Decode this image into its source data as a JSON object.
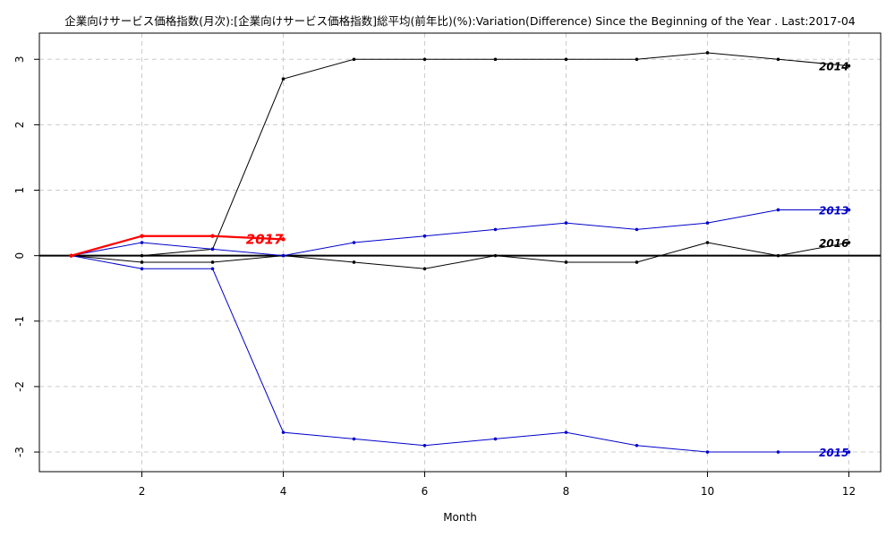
{
  "chart_data": {
    "type": "line",
    "title": "企業向けサービス価格指数(月次):[企業向けサービス価格指数]総平均(前年比)(%):Variation(Difference) Since the Beginning of the Year . Last:2017-04",
    "xlabel": "Month",
    "ylabel": "",
    "xlim": [
      0.55,
      12.45
    ],
    "ylim": [
      -3.3,
      3.4
    ],
    "x_ticks": [
      2,
      4,
      6,
      8,
      10,
      12
    ],
    "y_ticks": [
      -3,
      -2,
      -1,
      0,
      1,
      2,
      3
    ],
    "grid": true,
    "zero_line": true,
    "series": [
      {
        "name": "2014",
        "color": "#000000",
        "label_color": "#000000",
        "x": [
          1,
          2,
          3,
          4,
          5,
          6,
          7,
          8,
          9,
          10,
          11,
          12
        ],
        "values": [
          0,
          0,
          0.1,
          2.7,
          3.0,
          3.0,
          3.0,
          3.0,
          3.0,
          3.1,
          3.0,
          2.9
        ]
      },
      {
        "name": "2016",
        "color": "#000000",
        "label_color": "#000000",
        "x": [
          1,
          2,
          3,
          4,
          5,
          6,
          7,
          8,
          9,
          10,
          11,
          12
        ],
        "values": [
          0,
          -0.1,
          -0.1,
          0,
          -0.1,
          -0.2,
          0,
          -0.1,
          -0.1,
          0.2,
          0,
          0.2
        ]
      },
      {
        "name": "2013",
        "color": "#0000cc",
        "label_color": "#0000cc",
        "x": [
          1,
          2,
          3,
          4,
          5,
          6,
          7,
          8,
          9,
          10,
          11,
          12
        ],
        "values": [
          0,
          0.2,
          0.1,
          0,
          0.2,
          0.3,
          0.4,
          0.5,
          0.4,
          0.5,
          0.7,
          0.7
        ]
      },
      {
        "name": "2015",
        "color": "#0000cc",
        "label_color": "#0000cc",
        "x": [
          1,
          2,
          3,
          4,
          5,
          6,
          7,
          8,
          9,
          10,
          11,
          12
        ],
        "values": [
          0,
          -0.2,
          -0.2,
          -2.7,
          -2.8,
          -2.9,
          -2.8,
          -2.7,
          -2.9,
          -3.0,
          -3.0,
          -3.0
        ]
      },
      {
        "name": "2017",
        "color": "#ff0000",
        "label_color": "#ff0000",
        "x": [
          1,
          2,
          3,
          4
        ],
        "values": [
          0,
          0.3,
          0.3,
          0.25
        ],
        "highlight": true
      }
    ]
  }
}
